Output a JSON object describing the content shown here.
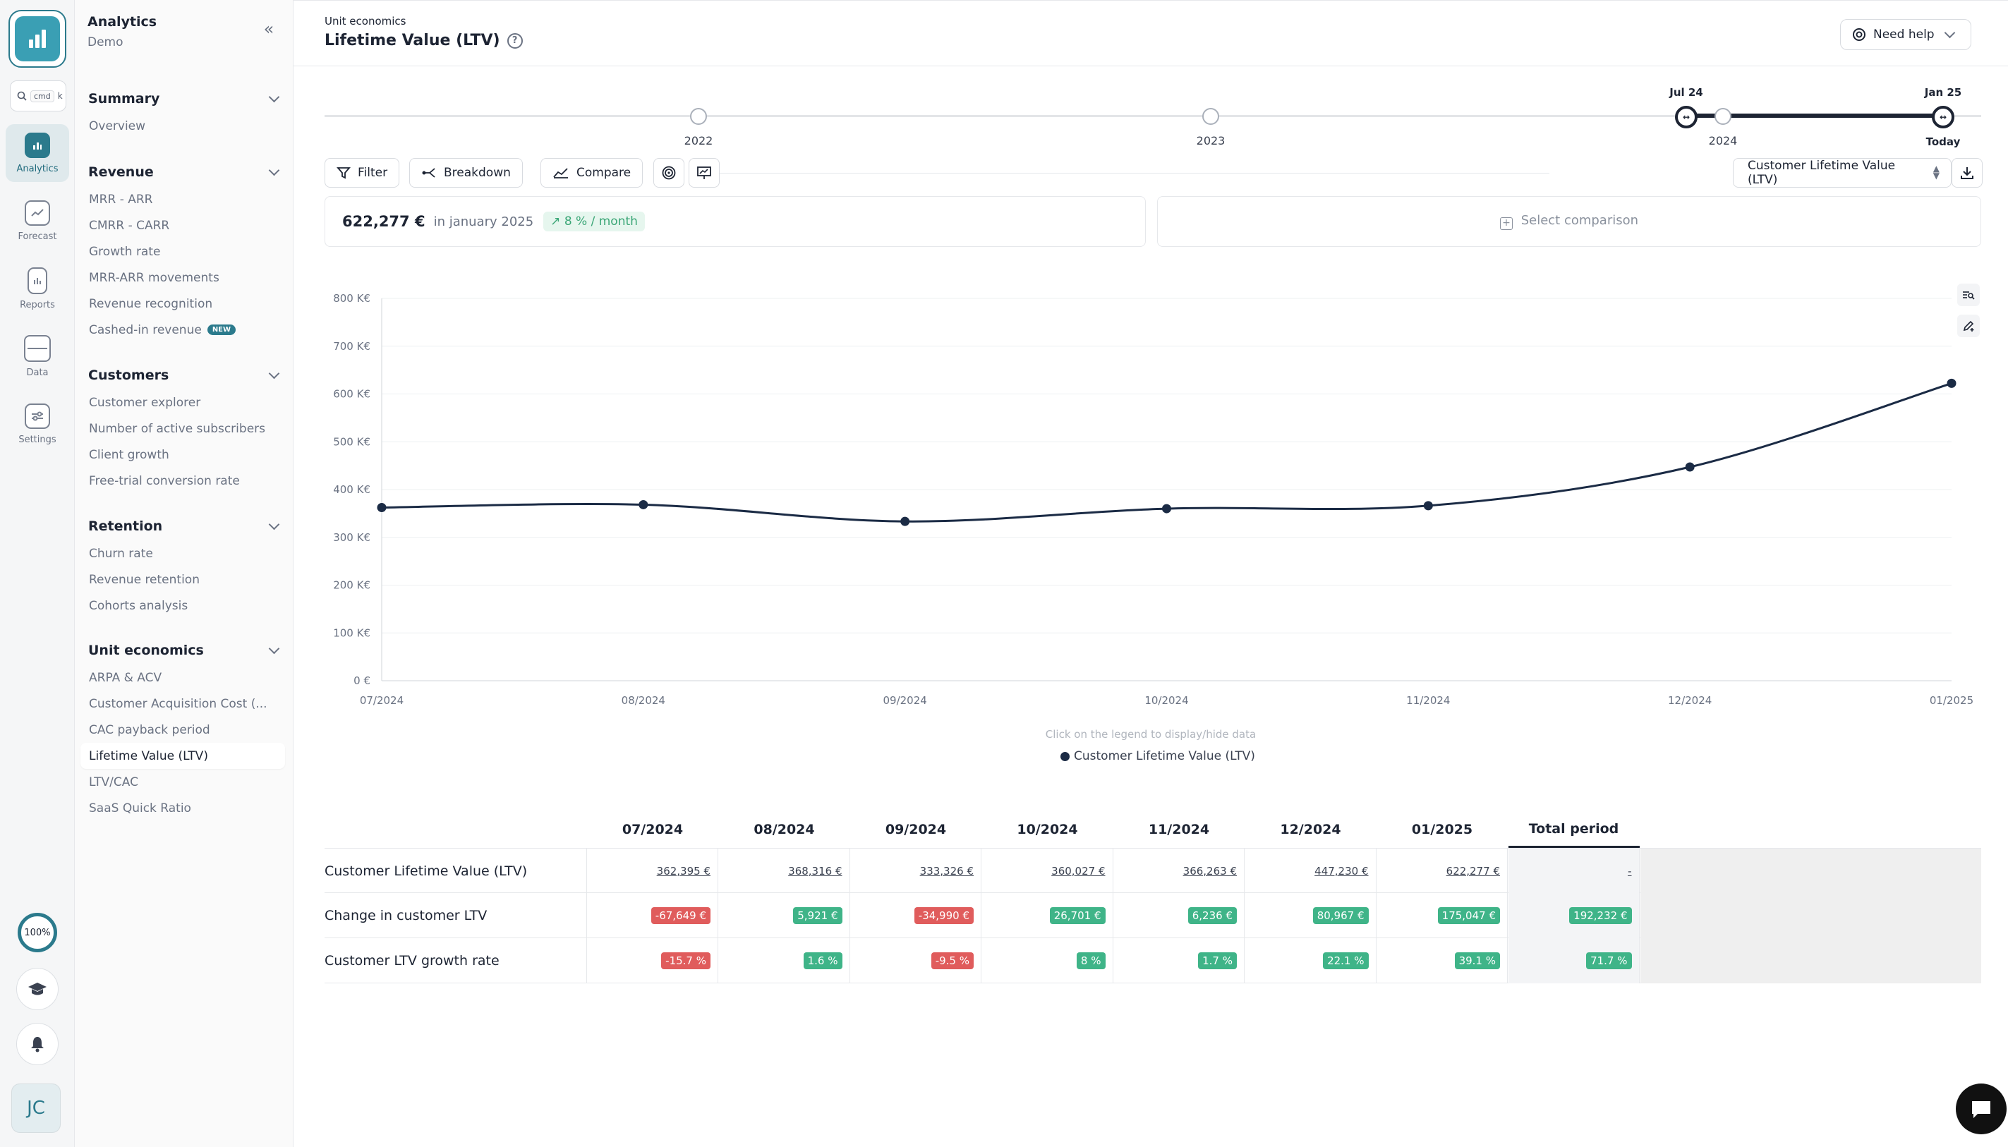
{
  "rail": {
    "search_kbd1": "cmd",
    "search_kbd2": "k",
    "items": [
      {
        "label": "Analytics",
        "icon": "analytics-icon"
      },
      {
        "label": "Forecast",
        "icon": "forecast-icon"
      },
      {
        "label": "Reports",
        "icon": "reports-icon"
      },
      {
        "label": "Data",
        "icon": "data-icon"
      },
      {
        "label": "Settings",
        "icon": "settings-icon"
      }
    ],
    "progress": "100%",
    "avatar": "JC"
  },
  "nav": {
    "title": "Analytics",
    "subtitle": "Demo",
    "sections": [
      {
        "title": "Summary",
        "items": [
          "Overview"
        ]
      },
      {
        "title": "Revenue",
        "items": [
          "MRR - ARR",
          "CMRR - CARR",
          "Growth rate",
          "MRR-ARR movements",
          "Revenue recognition",
          "Cashed-in revenue"
        ],
        "new_badge": "NEW"
      },
      {
        "title": "Customers",
        "items": [
          "Customer explorer",
          "Number of active subscribers",
          "Client growth",
          "Free-trial conversion rate"
        ]
      },
      {
        "title": "Retention",
        "items": [
          "Churn rate",
          "Revenue retention",
          "Cohorts analysis"
        ]
      },
      {
        "title": "Unit economics",
        "items": [
          "ARPA & ACV",
          "Customer Acquisition Cost (...",
          "CAC payback period",
          "Lifetime Value (LTV)",
          "LTV/CAC",
          "SaaS Quick Ratio"
        ]
      }
    ]
  },
  "header": {
    "breadcrumb": "Unit economics",
    "title": "Lifetime Value (LTV)",
    "help_label": "Need help"
  },
  "timeline": {
    "years": [
      "2022",
      "2023",
      "2024"
    ],
    "start_label": "Jul 24",
    "end_label": "Jan 25",
    "end_sub": "Today"
  },
  "toolbar": {
    "filter": "Filter",
    "breakdown": "Breakdown",
    "compare": "Compare",
    "metric": "Customer Lifetime Value (LTV)"
  },
  "kpi": {
    "value": "622,277 €",
    "period": "in january 2025",
    "growth": "8 % / month",
    "comparison_placeholder": "Select comparison"
  },
  "chart_data": {
    "type": "line",
    "x": [
      "07/2024",
      "08/2024",
      "09/2024",
      "10/2024",
      "11/2024",
      "12/2024",
      "01/2025"
    ],
    "series": [
      {
        "name": "Customer Lifetime Value (LTV)",
        "values": [
          362395,
          368316,
          333326,
          360027,
          366263,
          447230,
          622277
        ],
        "color": "#1b2b45"
      }
    ],
    "y_ticks": [
      "0 €",
      "100 K€",
      "200 K€",
      "300 K€",
      "400 K€",
      "500 K€",
      "600 K€",
      "700 K€",
      "800 K€"
    ],
    "ylim": [
      0,
      800000
    ],
    "grid": true,
    "legend_hint": "Click on the legend to display/hide data",
    "legend_position": "bottom"
  },
  "table": {
    "columns": [
      "07/2024",
      "08/2024",
      "09/2024",
      "10/2024",
      "11/2024",
      "12/2024",
      "01/2025",
      "Total period"
    ],
    "rows": [
      {
        "label": "Customer Lifetime Value (LTV)",
        "cells": [
          "362,395 €",
          "368,316 €",
          "333,326 €",
          "360,027 €",
          "366,263 €",
          "447,230 €",
          "622,277 €",
          "-"
        ],
        "style": "link"
      },
      {
        "label": "Change in customer LTV",
        "cells": [
          "-67,649 €",
          "5,921 €",
          "-34,990 €",
          "26,701 €",
          "6,236 €",
          "80,967 €",
          "175,047 €",
          "192,232 €"
        ],
        "signs": [
          "neg",
          "pos",
          "neg",
          "pos",
          "pos",
          "pos",
          "pos",
          "pos"
        ],
        "style": "pill"
      },
      {
        "label": "Customer LTV growth rate",
        "cells": [
          "-15.7 %",
          "1.6 %",
          "-9.5 %",
          "8 %",
          "1.7 %",
          "22.1 %",
          "39.1 %",
          "71.7 %"
        ],
        "signs": [
          "neg",
          "pos",
          "neg",
          "pos",
          "pos",
          "pos",
          "pos",
          "pos"
        ],
        "style": "pill"
      }
    ]
  }
}
